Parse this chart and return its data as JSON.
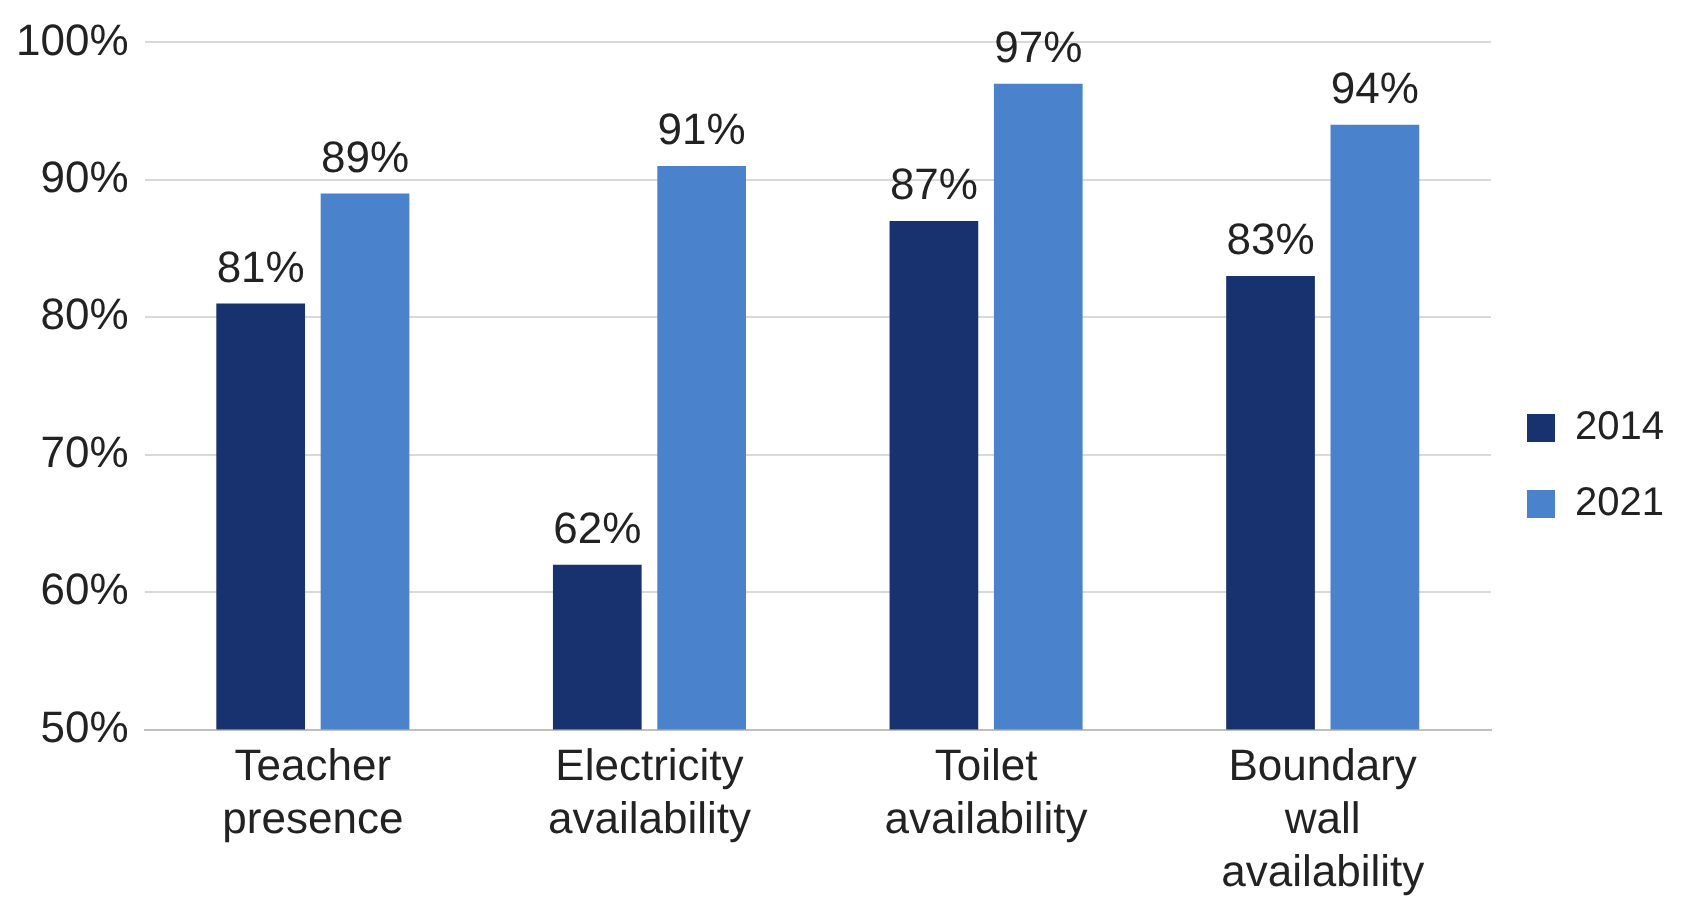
{
  "chart_data": {
    "type": "bar",
    "categories": [
      "Teacher presence",
      "Electricity availability",
      "Toilet availability",
      "Boundary wall availability"
    ],
    "series": [
      {
        "name": "2014",
        "color": "#17326f",
        "values": [
          81,
          62,
          87,
          83
        ],
        "value_labels": [
          "81%",
          "62%",
          "87%",
          "83%"
        ]
      },
      {
        "name": "2021",
        "color": "#4a83cc",
        "values": [
          89,
          91,
          97,
          94
        ],
        "value_labels": [
          "89%",
          "91%",
          "97%",
          "94%"
        ]
      }
    ],
    "ylim": [
      50,
      100
    ],
    "yticks": [
      {
        "value": 50,
        "label": "50%"
      },
      {
        "value": 60,
        "label": "60%"
      },
      {
        "value": 70,
        "label": "70%"
      },
      {
        "value": 80,
        "label": "80%"
      },
      {
        "value": 90,
        "label": "90%"
      },
      {
        "value": 100,
        "label": "100%"
      }
    ],
    "grid": "y",
    "legend": "right"
  }
}
